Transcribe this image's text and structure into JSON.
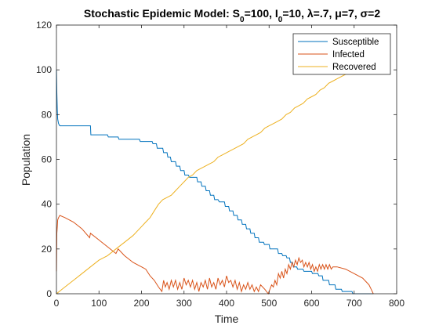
{
  "chart_data": {
    "type": "line",
    "title_parts": [
      {
        "text": "Stochastic Epidemic Model: S"
      },
      {
        "text": "0",
        "sub": true
      },
      {
        "text": "=100, I"
      },
      {
        "text": "0",
        "sub": true
      },
      {
        "text": "=10, λ=.7, μ=7, σ=2"
      }
    ],
    "xlabel": "Time",
    "ylabel": "Population",
    "xlim": [
      0,
      800
    ],
    "ylim": [
      0,
      120
    ],
    "xticks": [
      0,
      100,
      200,
      300,
      400,
      500,
      600,
      700,
      800
    ],
    "yticks": [
      0,
      20,
      40,
      60,
      80,
      100,
      120
    ],
    "grid": false,
    "legend_position": "top-right",
    "series": [
      {
        "name": "Susceptible",
        "color": "#0072BD",
        "points": [
          [
            0,
            100
          ],
          [
            1,
            90
          ],
          [
            2,
            82
          ],
          [
            3,
            78
          ],
          [
            5,
            76
          ],
          [
            8,
            75
          ],
          [
            60,
            75
          ],
          [
            80,
            75
          ],
          [
            81,
            71
          ],
          [
            120,
            71
          ],
          [
            122,
            70
          ],
          [
            145,
            70
          ],
          [
            147,
            69
          ],
          [
            195,
            69
          ],
          [
            197,
            68
          ],
          [
            225,
            68
          ],
          [
            227,
            67
          ],
          [
            235,
            67
          ],
          [
            237,
            65
          ],
          [
            250,
            65
          ],
          [
            252,
            63
          ],
          [
            260,
            63
          ],
          [
            262,
            61
          ],
          [
            268,
            61
          ],
          [
            270,
            59
          ],
          [
            280,
            59
          ],
          [
            282,
            57
          ],
          [
            290,
            57
          ],
          [
            292,
            55
          ],
          [
            300,
            55
          ],
          [
            302,
            53
          ],
          [
            310,
            53
          ],
          [
            313,
            52
          ],
          [
            330,
            52
          ],
          [
            332,
            50
          ],
          [
            340,
            50
          ],
          [
            342,
            48
          ],
          [
            350,
            48
          ],
          [
            352,
            46
          ],
          [
            360,
            46
          ],
          [
            362,
            44
          ],
          [
            370,
            44
          ],
          [
            372,
            42
          ],
          [
            380,
            42
          ],
          [
            383,
            41
          ],
          [
            395,
            41
          ],
          [
            397,
            39
          ],
          [
            405,
            39
          ],
          [
            407,
            37
          ],
          [
            415,
            37
          ],
          [
            417,
            35
          ],
          [
            425,
            35
          ],
          [
            427,
            33
          ],
          [
            435,
            33
          ],
          [
            437,
            31
          ],
          [
            445,
            31
          ],
          [
            447,
            29
          ],
          [
            455,
            29
          ],
          [
            457,
            27
          ],
          [
            465,
            27
          ],
          [
            467,
            25
          ],
          [
            475,
            25
          ],
          [
            477,
            23
          ],
          [
            487,
            23
          ],
          [
            489,
            22
          ],
          [
            500,
            22
          ],
          [
            502,
            20
          ],
          [
            520,
            20
          ],
          [
            522,
            18
          ],
          [
            530,
            18
          ],
          [
            532,
            17
          ],
          [
            540,
            17
          ],
          [
            542,
            16
          ],
          [
            548,
            16
          ],
          [
            550,
            14
          ],
          [
            555,
            14
          ],
          [
            557,
            12
          ],
          [
            565,
            12
          ],
          [
            567,
            11
          ],
          [
            580,
            11
          ],
          [
            582,
            10
          ],
          [
            600,
            10
          ],
          [
            602,
            9
          ],
          [
            615,
            9
          ],
          [
            617,
            8
          ],
          [
            625,
            8
          ],
          [
            627,
            6
          ],
          [
            640,
            6
          ],
          [
            642,
            4
          ],
          [
            655,
            4
          ],
          [
            657,
            2
          ],
          [
            670,
            2
          ],
          [
            672,
            1
          ],
          [
            695,
            1
          ],
          [
            697,
            0
          ],
          [
            745,
            0
          ]
        ]
      },
      {
        "name": "Infected",
        "color": "#D95319",
        "points": [
          [
            0,
            10
          ],
          [
            1,
            27
          ],
          [
            2,
            30
          ],
          [
            3,
            33
          ],
          [
            5,
            34
          ],
          [
            8,
            35
          ],
          [
            20,
            34
          ],
          [
            40,
            32
          ],
          [
            60,
            29
          ],
          [
            78,
            25
          ],
          [
            80,
            27
          ],
          [
            100,
            24
          ],
          [
            120,
            21
          ],
          [
            140,
            18
          ],
          [
            145,
            20
          ],
          [
            160,
            17
          ],
          [
            180,
            14
          ],
          [
            200,
            12
          ],
          [
            210,
            11
          ],
          [
            220,
            8
          ],
          [
            230,
            6
          ],
          [
            240,
            3
          ],
          [
            248,
            1
          ],
          [
            252,
            6
          ],
          [
            256,
            3
          ],
          [
            260,
            5
          ],
          [
            265,
            2
          ],
          [
            270,
            6
          ],
          [
            275,
            3
          ],
          [
            280,
            6
          ],
          [
            285,
            2
          ],
          [
            290,
            5
          ],
          [
            295,
            2
          ],
          [
            300,
            7
          ],
          [
            305,
            4
          ],
          [
            310,
            6
          ],
          [
            315,
            3
          ],
          [
            320,
            6
          ],
          [
            325,
            2
          ],
          [
            330,
            5
          ],
          [
            335,
            1
          ],
          [
            340,
            5
          ],
          [
            345,
            3
          ],
          [
            350,
            6
          ],
          [
            355,
            2
          ],
          [
            360,
            7
          ],
          [
            365,
            3
          ],
          [
            370,
            5
          ],
          [
            375,
            2
          ],
          [
            380,
            7
          ],
          [
            385,
            4
          ],
          [
            390,
            6
          ],
          [
            395,
            3
          ],
          [
            400,
            8
          ],
          [
            405,
            5
          ],
          [
            410,
            6
          ],
          [
            415,
            3
          ],
          [
            420,
            6
          ],
          [
            425,
            2
          ],
          [
            430,
            5
          ],
          [
            435,
            1
          ],
          [
            440,
            4
          ],
          [
            445,
            2
          ],
          [
            450,
            5
          ],
          [
            455,
            2
          ],
          [
            460,
            4
          ],
          [
            465,
            1
          ],
          [
            470,
            3
          ],
          [
            475,
            1
          ],
          [
            480,
            4
          ],
          [
            490,
            2
          ],
          [
            498,
            0
          ],
          [
            502,
            2
          ],
          [
            506,
            4
          ],
          [
            510,
            3
          ],
          [
            514,
            6
          ],
          [
            518,
            4
          ],
          [
            522,
            9
          ],
          [
            526,
            7
          ],
          [
            530,
            10
          ],
          [
            534,
            7
          ],
          [
            538,
            11
          ],
          [
            542,
            9
          ],
          [
            546,
            13
          ],
          [
            550,
            11
          ],
          [
            554,
            14
          ],
          [
            558,
            12
          ],
          [
            562,
            15
          ],
          [
            566,
            13
          ],
          [
            570,
            16
          ],
          [
            574,
            14
          ],
          [
            578,
            15
          ],
          [
            582,
            12
          ],
          [
            586,
            14
          ],
          [
            590,
            12
          ],
          [
            594,
            14
          ],
          [
            598,
            11
          ],
          [
            602,
            13
          ],
          [
            606,
            10
          ],
          [
            610,
            12
          ],
          [
            614,
            10
          ],
          [
            618,
            13
          ],
          [
            622,
            11
          ],
          [
            626,
            13
          ],
          [
            630,
            11
          ],
          [
            634,
            13
          ],
          [
            638,
            11
          ],
          [
            642,
            13
          ],
          [
            646,
            11
          ],
          [
            650,
            12
          ],
          [
            660,
            12
          ],
          [
            680,
            11
          ],
          [
            700,
            9
          ],
          [
            720,
            7
          ],
          [
            735,
            4
          ],
          [
            740,
            2
          ],
          [
            745,
            0
          ]
        ]
      },
      {
        "name": "Recovered",
        "color": "#EDB120",
        "points": [
          [
            0,
            0
          ],
          [
            20,
            3
          ],
          [
            40,
            6
          ],
          [
            60,
            9
          ],
          [
            80,
            12
          ],
          [
            100,
            15
          ],
          [
            120,
            17
          ],
          [
            140,
            20
          ],
          [
            160,
            23
          ],
          [
            180,
            26
          ],
          [
            200,
            30
          ],
          [
            210,
            32
          ],
          [
            220,
            34
          ],
          [
            230,
            37
          ],
          [
            240,
            40
          ],
          [
            250,
            42
          ],
          [
            260,
            43
          ],
          [
            270,
            44
          ],
          [
            280,
            46
          ],
          [
            290,
            48
          ],
          [
            300,
            50
          ],
          [
            310,
            52
          ],
          [
            320,
            53
          ],
          [
            330,
            55
          ],
          [
            340,
            56
          ],
          [
            350,
            57
          ],
          [
            360,
            58
          ],
          [
            370,
            59
          ],
          [
            380,
            61
          ],
          [
            390,
            62
          ],
          [
            400,
            63
          ],
          [
            410,
            64
          ],
          [
            420,
            65
          ],
          [
            430,
            66
          ],
          [
            440,
            67
          ],
          [
            450,
            69
          ],
          [
            460,
            70
          ],
          [
            470,
            71
          ],
          [
            480,
            72
          ],
          [
            490,
            74
          ],
          [
            500,
            75
          ],
          [
            510,
            76
          ],
          [
            520,
            77
          ],
          [
            530,
            78
          ],
          [
            540,
            80
          ],
          [
            550,
            81
          ],
          [
            560,
            83
          ],
          [
            570,
            84
          ],
          [
            580,
            85
          ],
          [
            590,
            87
          ],
          [
            600,
            88
          ],
          [
            610,
            89
          ],
          [
            620,
            91
          ],
          [
            630,
            92
          ],
          [
            640,
            94
          ],
          [
            650,
            95
          ],
          [
            660,
            96
          ],
          [
            670,
            97
          ],
          [
            680,
            98
          ],
          [
            690,
            99
          ],
          [
            700,
            100
          ],
          [
            710,
            101
          ],
          [
            720,
            103
          ],
          [
            730,
            104
          ],
          [
            740,
            105
          ],
          [
            745,
            106
          ]
        ]
      }
    ]
  }
}
